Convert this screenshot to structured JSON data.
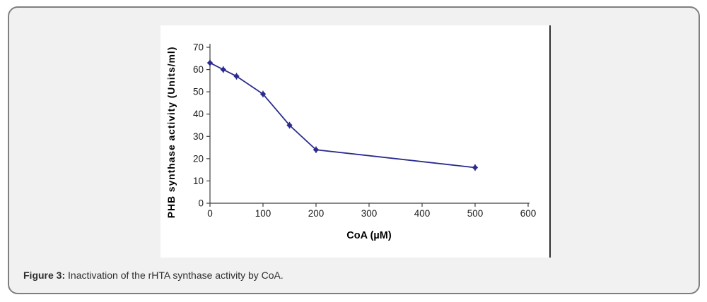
{
  "figure_caption": {
    "label": "Figure 3:",
    "text": " Inactivation of the rHTA synthase activity by CoA."
  },
  "chart_data": {
    "type": "line",
    "title": "",
    "xlabel": "CoA (µM)",
    "ylabel": "PHB synthase activity (Units/ml)",
    "x": [
      0,
      25,
      50,
      100,
      150,
      200,
      500
    ],
    "y": [
      63,
      60,
      57,
      49,
      35,
      24,
      16
    ],
    "series": [
      {
        "name": "PHB synthase activity",
        "x": [
          0,
          25,
          50,
          100,
          150,
          200,
          500
        ],
        "y": [
          63,
          60,
          57,
          49,
          35,
          24,
          16
        ]
      }
    ],
    "x_ticks": [
      0,
      100,
      200,
      300,
      400,
      500,
      600
    ],
    "y_ticks": [
      0,
      10,
      20,
      30,
      40,
      50,
      60,
      70
    ],
    "xlim": [
      0,
      600
    ],
    "ylim": [
      0,
      70
    ],
    "grid": false,
    "legend": false,
    "marker": "diamond",
    "marker_size": 4.2,
    "error_bar_units": 1.5,
    "line_color": "#2B2B8E"
  },
  "colors": {
    "card_background": "#f1f1f1",
    "card_border": "#7f7f7f",
    "panel_background": "#ffffff",
    "axis": "#404040",
    "caption_text": "#2e2e2e"
  }
}
